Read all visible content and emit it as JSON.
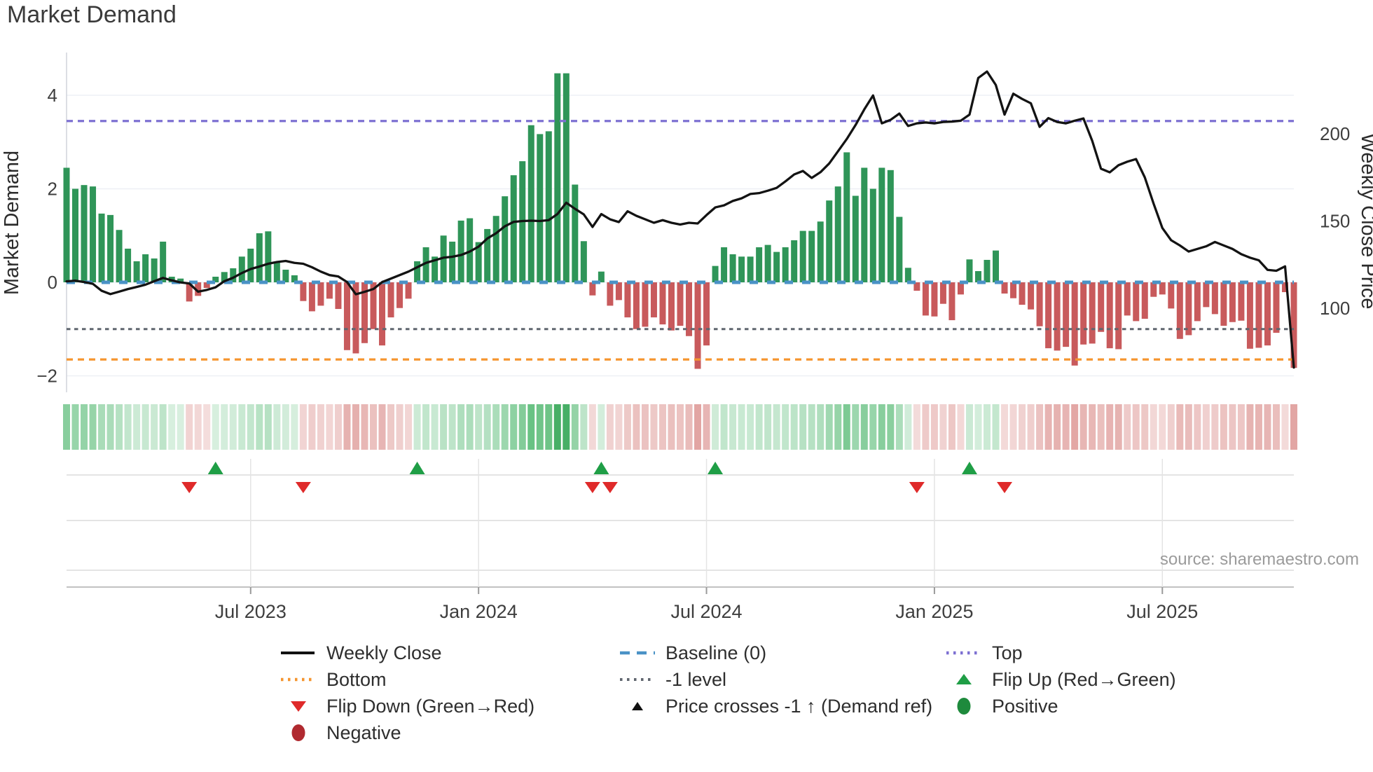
{
  "title": "Market Demand",
  "source": "source: sharemaestro.com",
  "y_axis": {
    "label": "Market Demand",
    "ticks": [
      4,
      2,
      0,
      -2
    ]
  },
  "y2_axis": {
    "label": "Weekly Close Price",
    "ticks": [
      200,
      150,
      100
    ]
  },
  "x_axis": {
    "ticks": [
      "Jul 2023",
      "Jan 2024",
      "Jul 2024",
      "Jan 2025",
      "Jul 2025"
    ]
  },
  "legend": {
    "items": [
      {
        "label": "Weekly Close",
        "marker": "line-black"
      },
      {
        "label": "Baseline (0)",
        "marker": "dash-blue"
      },
      {
        "label": "Top",
        "marker": "dot-purple"
      },
      {
        "label": "Bottom",
        "marker": "dot-orange"
      },
      {
        "label": "-1 level",
        "marker": "dot-gray"
      },
      {
        "label": "Flip Up (Red→Green)",
        "marker": "triangle-up-green"
      },
      {
        "label": "Flip Down (Green→Red)",
        "marker": "triangle-down-red"
      },
      {
        "label": "Price crosses -1 ↑ (Demand ref)",
        "marker": "triangle-up-black"
      },
      {
        "label": "Positive",
        "marker": "circle-green"
      },
      {
        "label": "Negative",
        "marker": "circle-darkred"
      }
    ]
  },
  "colors": {
    "positive_bar": "#2f9558",
    "negative_bar": "#c85a5c",
    "baseline_blue": "#4a92c6",
    "top_purple": "#7d70d2",
    "bottom_orange": "#f5952f",
    "minus1_gray": "#60666f",
    "price_line": "#131313",
    "flip_up_green": "#1f9e46",
    "flip_down_red": "#df2a2a",
    "positive_dot": "#1e8a3c",
    "negative_dot": "#b02a30",
    "grid": "#eef0f5",
    "axis_text": "#3e3e3e"
  },
  "chart_data": {
    "type": "bar+line",
    "title": "Market Demand",
    "ylabel": "Market Demand",
    "y2label": "Weekly Close Price",
    "freq": "weekly",
    "start": "Feb 2023",
    "end": "Oct 2025",
    "ylim": [
      -2.3,
      4.9
    ],
    "y2_tick_values": [
      200,
      150,
      100
    ],
    "y_tick_values": [
      4,
      2,
      0,
      -2
    ],
    "baseline_level": 0,
    "top_level": 3.45,
    "bottom_level": -1.65,
    "minus1_level": -1,
    "x_tick_labels": [
      "Jul 2023",
      "Jan 2024",
      "Jul 2024",
      "Jan 2025",
      "Jul 2025"
    ],
    "x_tick_weeks": [
      21,
      47,
      73,
      99,
      125
    ],
    "flip_up_weeks": [
      17,
      40,
      61,
      74,
      103
    ],
    "flip_down_weeks": [
      14,
      27,
      60,
      62,
      97,
      107
    ],
    "price_cross_weeks": [],
    "demand": [
      2.45,
      2.0,
      2.08,
      2.05,
      1.47,
      1.44,
      1.12,
      0.72,
      0.45,
      0.6,
      0.51,
      0.87,
      0.12,
      0.08,
      -0.41,
      -0.29,
      -0.12,
      0.12,
      0.22,
      0.3,
      0.55,
      0.72,
      1.05,
      1.09,
      0.42,
      0.27,
      0.15,
      -0.4,
      -0.62,
      -0.5,
      -0.35,
      -0.57,
      -1.45,
      -1.52,
      -1.3,
      -1.0,
      -1.35,
      -0.75,
      -0.55,
      -0.35,
      0.45,
      0.75,
      0.55,
      1.0,
      0.87,
      1.32,
      1.37,
      0.86,
      1.14,
      1.42,
      1.84,
      2.29,
      2.59,
      3.36,
      3.17,
      3.23,
      4.47,
      4.47,
      2.09,
      0.88,
      -0.28,
      0.23,
      -0.5,
      -0.38,
      -0.75,
      -1.0,
      -0.95,
      -0.75,
      -0.9,
      -1.03,
      -0.93,
      -1.15,
      -1.85,
      -1.35,
      0.35,
      0.75,
      0.6,
      0.55,
      0.55,
      0.75,
      0.8,
      0.65,
      0.75,
      0.9,
      1.1,
      1.1,
      1.3,
      1.75,
      2.05,
      2.78,
      1.85,
      2.45,
      2.0,
      2.45,
      2.4,
      1.4,
      0.31,
      -0.18,
      -0.71,
      -0.73,
      -0.46,
      -0.81,
      -0.26,
      0.49,
      0.24,
      0.48,
      0.68,
      -0.24,
      -0.34,
      -0.48,
      -0.58,
      -0.94,
      -1.41,
      -1.46,
      -1.38,
      -1.78,
      -1.33,
      -1.31,
      -1.06,
      -1.41,
      -1.43,
      -0.71,
      -0.83,
      -0.78,
      -0.31,
      -0.26,
      -0.56,
      -1.21,
      -1.13,
      -0.83,
      -0.53,
      -0.68,
      -0.93,
      -0.85,
      -0.82,
      -1.42,
      -1.4,
      -1.35,
      -1.08,
      -0.21,
      -1.83
    ],
    "price": [
      115.4,
      115.8,
      115.0,
      114.0,
      110.0,
      108.1,
      109.5,
      111.0,
      112.2,
      113.5,
      115.5,
      117.4,
      116.0,
      114.8,
      114.2,
      109.5,
      110.5,
      112.0,
      115.5,
      117.5,
      120.2,
      122.5,
      123.9,
      125.5,
      126.5,
      127.1,
      126.0,
      125.5,
      123.5,
      121.0,
      119.0,
      118.2,
      115.0,
      108.0,
      109.4,
      111.0,
      115.0,
      117.0,
      119.0,
      121.0,
      123.5,
      126.0,
      127.5,
      129.0,
      129.5,
      130.5,
      132.5,
      135.3,
      140.0,
      143.0,
      147.0,
      149.5,
      150.0,
      150.2,
      150.0,
      150.5,
      154.0,
      160.5,
      157.0,
      153.8,
      146.6,
      154.0,
      151.0,
      149.4,
      155.6,
      153.0,
      151.0,
      149.0,
      150.5,
      149.0,
      148.0,
      149.0,
      148.6,
      153.4,
      157.8,
      159.0,
      161.5,
      163.0,
      165.5,
      166.0,
      167.4,
      169.0,
      172.7,
      176.7,
      178.7,
      174.7,
      178.0,
      183.0,
      190.0,
      197.0,
      205.0,
      214.0,
      222.0,
      206.0,
      208.0,
      211.6,
      204.5,
      206.0,
      206.5,
      206.0,
      206.8,
      207.0,
      207.5,
      211.0,
      232.0,
      235.7,
      228.0,
      211.0,
      223.0,
      220.0,
      217.5,
      204.0,
      209.0,
      206.8,
      206.0,
      207.5,
      208.8,
      196.0,
      180.0,
      177.9,
      182.0,
      184.0,
      185.5,
      175.0,
      160.0,
      146.0,
      139.0,
      136.0,
      132.5,
      134.0,
      135.5,
      138.0,
      136.0,
      134.0,
      131.0,
      129.0,
      127.5,
      122.0,
      121.5,
      124.0,
      66.0
    ]
  }
}
